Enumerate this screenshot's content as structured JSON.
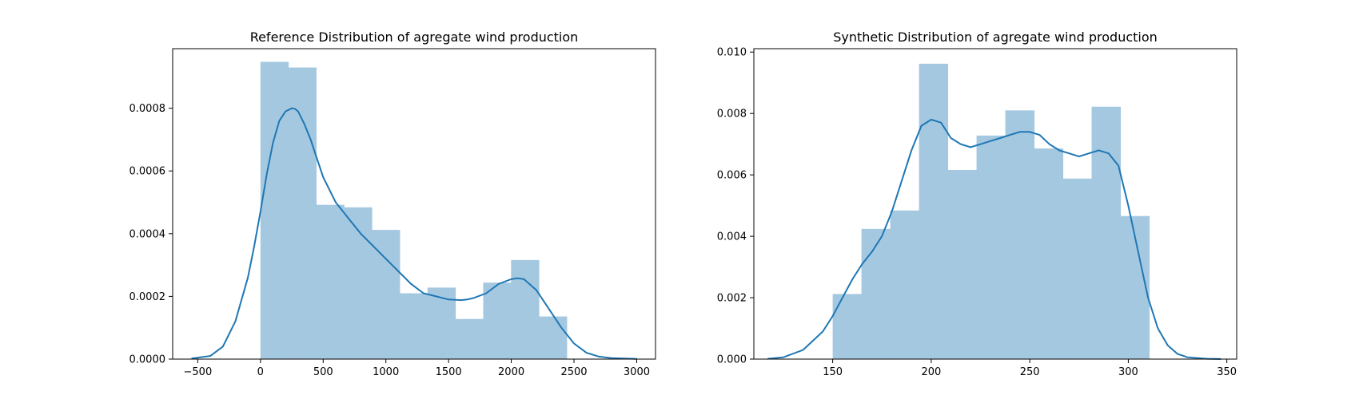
{
  "chart_data": [
    {
      "type": "histogram",
      "title": "Reference Distribution of agregate wind production",
      "xlabel": "",
      "ylabel": "",
      "xlim": [
        -700,
        3150
      ],
      "ylim": [
        0,
        0.00099
      ],
      "xticks": [
        -500,
        0,
        500,
        1000,
        1500,
        2000,
        2500,
        3000
      ],
      "yticks": [
        0.0,
        0.0002,
        0.0004,
        0.0006,
        0.0008
      ],
      "ytick_labels": [
        "0.0000",
        "0.0002",
        "0.0004",
        "0.0006",
        "0.0008"
      ],
      "grid": false,
      "bar_color": "#a5c8e1",
      "line_color": "#1f77b4",
      "bins": [
        {
          "x0": 0,
          "x1": 222,
          "value": 0.000948
        },
        {
          "x0": 222,
          "x1": 444,
          "value": 0.00093
        },
        {
          "x0": 444,
          "x1": 666,
          "value": 0.000492
        },
        {
          "x0": 666,
          "x1": 888,
          "value": 0.000484
        },
        {
          "x0": 888,
          "x1": 1110,
          "value": 0.000412
        },
        {
          "x0": 1110,
          "x1": 1332,
          "value": 0.00021
        },
        {
          "x0": 1332,
          "x1": 1554,
          "value": 0.000228
        },
        {
          "x0": 1554,
          "x1": 1776,
          "value": 0.000128
        },
        {
          "x0": 1776,
          "x1": 1998,
          "value": 0.000244
        },
        {
          "x0": 1998,
          "x1": 2220,
          "value": 0.000316
        },
        {
          "x0": 2220,
          "x1": 2442,
          "value": 0.000136
        }
      ],
      "kde": {
        "x": [
          -550,
          -400,
          -300,
          -200,
          -100,
          -50,
          0,
          50,
          100,
          150,
          200,
          250,
          275,
          300,
          350,
          400,
          450,
          500,
          600,
          700,
          800,
          900,
          1000,
          1100,
          1200,
          1300,
          1400,
          1500,
          1600,
          1650,
          1700,
          1800,
          1900,
          2000,
          2050,
          2100,
          2200,
          2300,
          2400,
          2500,
          2600,
          2700,
          2800,
          3000
        ],
        "y": [
          2e-06,
          1e-05,
          4e-05,
          0.00012,
          0.00026,
          0.00036,
          0.00047,
          0.00059,
          0.00069,
          0.00076,
          0.00079,
          0.0008,
          0.000798,
          0.00079,
          0.00075,
          0.0007,
          0.00064,
          0.00058,
          0.0005,
          0.00045,
          0.0004,
          0.00036,
          0.00032,
          0.00028,
          0.00024,
          0.00021,
          0.0002,
          0.00019,
          0.000188,
          0.00019,
          0.000195,
          0.00021,
          0.00024,
          0.000255,
          0.000258,
          0.000255,
          0.00022,
          0.00016,
          0.0001,
          5e-05,
          2e-05,
          8e-06,
          3e-06,
          5e-07
        ]
      }
    },
    {
      "type": "histogram",
      "title": "Synthetic Distribution of agregate wind production",
      "xlabel": "",
      "ylabel": "",
      "xlim": [
        110,
        355
      ],
      "ylim": [
        0,
        0.01011
      ],
      "xticks": [
        150,
        200,
        250,
        300,
        350
      ],
      "yticks": [
        0.0,
        0.002,
        0.004,
        0.006,
        0.008,
        0.01
      ],
      "ytick_labels": [
        "0.000",
        "0.002",
        "0.004",
        "0.006",
        "0.008",
        "0.010"
      ],
      "grid": false,
      "bar_color": "#a5c8e1",
      "line_color": "#1f77b4",
      "bins": [
        {
          "x0": 150,
          "x1": 164.6,
          "value": 0.00212
        },
        {
          "x0": 164.6,
          "x1": 179.2,
          "value": 0.00424
        },
        {
          "x0": 179.2,
          "x1": 193.8,
          "value": 0.00484
        },
        {
          "x0": 193.8,
          "x1": 208.4,
          "value": 0.00962
        },
        {
          "x0": 208.4,
          "x1": 223.0,
          "value": 0.00616
        },
        {
          "x0": 223.0,
          "x1": 237.6,
          "value": 0.00728
        },
        {
          "x0": 237.6,
          "x1": 252.2,
          "value": 0.0081
        },
        {
          "x0": 252.2,
          "x1": 266.8,
          "value": 0.00686
        },
        {
          "x0": 266.8,
          "x1": 281.4,
          "value": 0.00588
        },
        {
          "x0": 281.4,
          "x1": 296.0,
          "value": 0.00822
        },
        {
          "x0": 296.0,
          "x1": 310.6,
          "value": 0.00466
        }
      ],
      "kde": {
        "x": [
          117,
          125,
          135,
          145,
          150,
          155,
          160,
          165,
          170,
          175,
          180,
          185,
          190,
          195,
          200,
          205,
          210,
          215,
          220,
          225,
          230,
          235,
          240,
          245,
          250,
          255,
          260,
          265,
          270,
          275,
          280,
          285,
          290,
          295,
          300,
          305,
          310,
          315,
          320,
          325,
          330,
          340,
          347
        ],
        "y": [
          1e-05,
          6e-05,
          0.0003,
          0.0009,
          0.0014,
          0.002,
          0.0026,
          0.0031,
          0.0035,
          0.004,
          0.0048,
          0.0058,
          0.0068,
          0.0076,
          0.0078,
          0.0077,
          0.0072,
          0.007,
          0.0069,
          0.007,
          0.0071,
          0.0072,
          0.0073,
          0.0074,
          0.0074,
          0.0073,
          0.007,
          0.0068,
          0.0067,
          0.0066,
          0.0067,
          0.0068,
          0.0067,
          0.0063,
          0.005,
          0.0035,
          0.002,
          0.001,
          0.00045,
          0.00017,
          6e-05,
          1e-05,
          2e-06
        ]
      }
    }
  ]
}
